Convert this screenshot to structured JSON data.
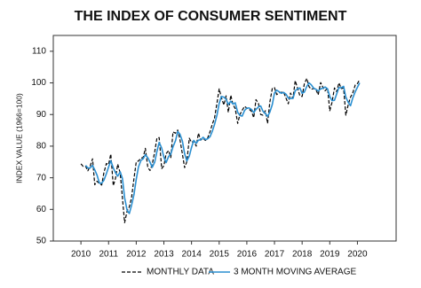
{
  "chart_data": {
    "type": "line",
    "title": "THE INDEX OF CONSUMER SENTIMENT",
    "y_label": "INDEX VALUE (1966=100)",
    "x": [
      2010,
      2010.08,
      2010.17,
      2010.25,
      2010.33,
      2010.42,
      2010.5,
      2010.58,
      2010.67,
      2010.75,
      2010.83,
      2010.92,
      2011,
      2011.08,
      2011.17,
      2011.25,
      2011.33,
      2011.42,
      2011.5,
      2011.58,
      2011.67,
      2011.75,
      2011.83,
      2011.92,
      2012,
      2012.08,
      2012.17,
      2012.25,
      2012.33,
      2012.42,
      2012.5,
      2012.58,
      2012.67,
      2012.75,
      2012.83,
      2012.92,
      2013,
      2013.08,
      2013.17,
      2013.25,
      2013.33,
      2013.42,
      2013.5,
      2013.58,
      2013.67,
      2013.75,
      2013.83,
      2013.92,
      2014,
      2014.08,
      2014.17,
      2014.25,
      2014.33,
      2014.42,
      2014.5,
      2014.58,
      2014.67,
      2014.75,
      2014.83,
      2014.92,
      2015,
      2015.08,
      2015.17,
      2015.25,
      2015.33,
      2015.42,
      2015.5,
      2015.58,
      2015.67,
      2015.75,
      2015.83,
      2015.92,
      2016,
      2016.08,
      2016.17,
      2016.25,
      2016.33,
      2016.42,
      2016.5,
      2016.58,
      2016.67,
      2016.75,
      2016.83,
      2016.92,
      2017,
      2017.08,
      2017.17,
      2017.25,
      2017.33,
      2017.42,
      2017.5,
      2017.58,
      2017.67,
      2017.75,
      2017.83,
      2017.92,
      2018,
      2018.08,
      2018.17,
      2018.25,
      2018.33,
      2018.42,
      2018.5,
      2018.58,
      2018.67,
      2018.75,
      2018.83,
      2018.92,
      2019,
      2019.08,
      2019.17,
      2019.25,
      2019.33,
      2019.42,
      2019.5,
      2019.58,
      2019.67,
      2019.75,
      2019.83,
      2019.92,
      2020,
      2020.08
    ],
    "series": [
      {
        "name": "MONTHLY DATA",
        "color": "#000000",
        "style": "dashed",
        "values": [
          74.4,
          73.6,
          73.6,
          72.2,
          73.6,
          76.0,
          67.8,
          68.9,
          68.2,
          67.7,
          71.6,
          74.5,
          74.2,
          77.5,
          67.5,
          69.8,
          74.3,
          71.5,
          63.7,
          55.8,
          59.5,
          60.8,
          63.7,
          69.9,
          75.0,
          75.3,
          76.2,
          76.4,
          79.3,
          73.2,
          72.3,
          74.3,
          78.3,
          82.6,
          82.7,
          72.9,
          73.8,
          77.6,
          78.6,
          76.4,
          84.5,
          84.1,
          85.1,
          82.1,
          77.5,
          73.2,
          75.1,
          82.5,
          81.2,
          81.6,
          80.0,
          84.1,
          81.9,
          82.5,
          81.8,
          82.5,
          84.6,
          86.9,
          88.8,
          93.6,
          98.1,
          95.4,
          93.0,
          95.9,
          90.7,
          96.1,
          93.1,
          91.9,
          87.2,
          90.0,
          91.3,
          92.6,
          92.0,
          91.7,
          91.0,
          89.0,
          94.7,
          93.5,
          90.0,
          89.8,
          91.2,
          87.2,
          93.8,
          98.2,
          98.5,
          96.3,
          96.9,
          97.0,
          97.1,
          95.1,
          93.4,
          96.8,
          95.1,
          100.7,
          98.5,
          95.9,
          95.7,
          99.7,
          101.4,
          98.8,
          98.0,
          98.2,
          97.9,
          96.2,
          100.1,
          98.6,
          97.5,
          98.3,
          91.2,
          93.8,
          98.4,
          97.2,
          100.0,
          98.2,
          98.4,
          89.8,
          93.2,
          95.5,
          96.8,
          99.3,
          99.8,
          101.0
        ]
      },
      {
        "name": "3 MONTH MOVING AVERAGE",
        "color": "#2a8fd1",
        "style": "solid",
        "values": [
          null,
          null,
          73.9,
          73.1,
          73.1,
          73.9,
          72.5,
          70.9,
          68.3,
          68.3,
          69.2,
          71.3,
          73.4,
          75.4,
          73.1,
          71.6,
          70.5,
          71.9,
          69.8,
          63.7,
          59.7,
          58.7,
          61.3,
          64.8,
          69.5,
          73.4,
          75.5,
          76.0,
          77.3,
          76.3,
          74.9,
          73.3,
          75.0,
          78.4,
          81.2,
          79.4,
          76.5,
          74.8,
          76.7,
          77.5,
          79.8,
          81.7,
          84.6,
          83.8,
          81.6,
          77.6,
          75.3,
          76.9,
          79.6,
          81.8,
          80.9,
          81.9,
          82.0,
          82.8,
          82.1,
          82.3,
          83.0,
          84.7,
          86.8,
          89.8,
          93.5,
          95.7,
          95.5,
          94.8,
          93.2,
          94.2,
          93.3,
          93.7,
          90.7,
          89.7,
          89.5,
          91.3,
          92.0,
          92.1,
          91.6,
          90.6,
          91.6,
          92.4,
          92.7,
          91.1,
          90.3,
          89.4,
          90.7,
          93.1,
          96.8,
          97.7,
          97.2,
          96.7,
          97.0,
          96.4,
          95.2,
          95.1,
          95.1,
          97.5,
          98.1,
          98.4,
          96.7,
          97.1,
          98.9,
          100.0,
          99.4,
          98.3,
          98.0,
          97.4,
          98.1,
          98.3,
          98.7,
          98.1,
          95.7,
          94.4,
          94.5,
          96.5,
          98.5,
          98.5,
          98.9,
          95.5,
          93.8,
          92.8,
          95.2,
          97.2,
          98.6,
          100.0
        ]
      }
    ],
    "xlim": [
      2009,
      2021.4
    ],
    "xticks": [
      2010,
      2011,
      2012,
      2013,
      2014,
      2015,
      2016,
      2017,
      2018,
      2019,
      2020
    ],
    "ylim": [
      50,
      115
    ],
    "yticks": [
      50,
      60,
      70,
      80,
      90,
      100,
      110
    ]
  }
}
